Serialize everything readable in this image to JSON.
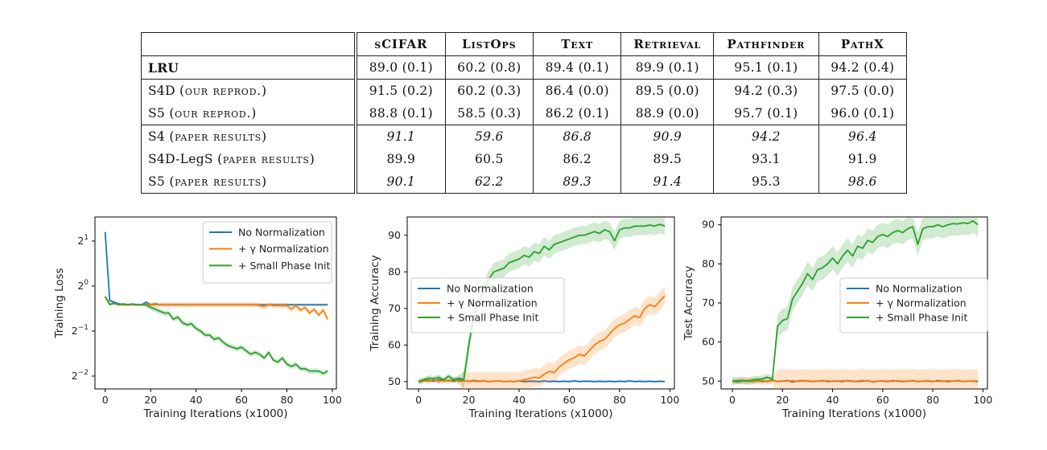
{
  "table": {
    "columns": [
      "sCIFAR",
      "ListOps",
      "Text",
      "Retrieval",
      "Pathfinder",
      "PathX"
    ],
    "rows": [
      {
        "name": "LRU",
        "bold": true,
        "main": "",
        "suffix": "",
        "values": [
          "89.0 (0.1)",
          "60.2 (0.8)",
          "89.4 (0.1)",
          "89.9 (0.1)",
          "95.1 (0.1)",
          "94.2 (0.4)"
        ]
      },
      {
        "name": "",
        "main": "S4D",
        "suffix": "(our reprod.)",
        "values": [
          "91.5 (0.2)",
          "60.2 (0.3)",
          "86.4 (0.0)",
          "89.5 (0.0)",
          "94.2 (0.3)",
          "97.5 (0.0)"
        ]
      },
      {
        "name": "",
        "main": "S5",
        "suffix": "(our reprod.)",
        "values": [
          "88.8 (0.1)",
          "58.5 (0.3)",
          "86.2 (0.1)",
          "88.9 (0.0)",
          "95.7 (0.1)",
          "96.0 (0.1)"
        ]
      },
      {
        "name": "",
        "main": "S4",
        "suffix": "(paper results)",
        "values": [
          "91.1",
          "59.6",
          "86.8",
          "90.9",
          "94.2",
          "96.4"
        ]
      },
      {
        "name": "",
        "main": "S4D-LegS",
        "suffix": "(paper results)",
        "values": [
          "89.9",
          "60.5",
          "86.2",
          "89.5",
          "93.1",
          "91.9"
        ]
      },
      {
        "name": "",
        "main": "S5",
        "suffix": "(paper results)",
        "values": [
          "90.1",
          "62.2",
          "89.3",
          "91.4",
          "95.3",
          "98.6"
        ]
      }
    ]
  },
  "series_colors": {
    "No Normalization": "#1f77b4",
    "+ γ Normalization": "#ff7f0e",
    "+ Small Phase Init": "#2ca02c"
  },
  "chart_data": [
    {
      "type": "line",
      "xlabel": "Training Iterations (x1000)",
      "ylabel": "Training Loss",
      "yscale": "log2",
      "xlim": [
        0,
        100
      ],
      "xticks": [
        0,
        20,
        40,
        60,
        80,
        100
      ],
      "yticks_exp": [
        1,
        0,
        -1,
        -2
      ],
      "legend": "top-right",
      "x": [
        0,
        2,
        4,
        6,
        8,
        10,
        12,
        14,
        16,
        18,
        20,
        22,
        24,
        26,
        28,
        30,
        32,
        34,
        36,
        38,
        40,
        42,
        44,
        46,
        48,
        50,
        52,
        54,
        56,
        58,
        60,
        62,
        64,
        66,
        68,
        70,
        72,
        74,
        76,
        78,
        80,
        82,
        84,
        86,
        88,
        90,
        92,
        94,
        96,
        98
      ],
      "series": [
        {
          "name": "No Normalization",
          "values": [
            2.3,
            0.8,
            0.78,
            0.76,
            0.75,
            0.75,
            0.75,
            0.75,
            0.75,
            0.78,
            0.75,
            0.76,
            0.75,
            0.75,
            0.75,
            0.75,
            0.75,
            0.75,
            0.75,
            0.75,
            0.75,
            0.75,
            0.75,
            0.75,
            0.75,
            0.75,
            0.75,
            0.75,
            0.75,
            0.75,
            0.75,
            0.75,
            0.75,
            0.75,
            0.75,
            0.75,
            0.75,
            0.75,
            0.75,
            0.75,
            0.75,
            0.75,
            0.75,
            0.75,
            0.75,
            0.75,
            0.75,
            0.75,
            0.75,
            0.75
          ]
        },
        {
          "name": "+ γ Normalization",
          "values": [
            0.85,
            0.76,
            0.76,
            0.75,
            0.75,
            0.75,
            0.75,
            0.75,
            0.75,
            0.75,
            0.75,
            0.75,
            0.75,
            0.75,
            0.75,
            0.75,
            0.75,
            0.75,
            0.75,
            0.75,
            0.75,
            0.75,
            0.75,
            0.75,
            0.75,
            0.75,
            0.75,
            0.75,
            0.75,
            0.75,
            0.75,
            0.75,
            0.75,
            0.75,
            0.74,
            0.73,
            0.75,
            0.74,
            0.74,
            0.74,
            0.74,
            0.7,
            0.74,
            0.69,
            0.72,
            0.66,
            0.7,
            0.64,
            0.69,
            0.6
          ]
        },
        {
          "name": "+ Small Phase Init",
          "values": [
            0.85,
            0.75,
            0.77,
            0.75,
            0.76,
            0.75,
            0.76,
            0.75,
            0.75,
            0.75,
            0.72,
            0.7,
            0.68,
            0.66,
            0.66,
            0.6,
            0.62,
            0.57,
            0.55,
            0.56,
            0.52,
            0.5,
            0.47,
            0.47,
            0.44,
            0.45,
            0.42,
            0.4,
            0.39,
            0.38,
            0.39,
            0.37,
            0.35,
            0.36,
            0.35,
            0.33,
            0.36,
            0.32,
            0.31,
            0.33,
            0.3,
            0.29,
            0.3,
            0.28,
            0.28,
            0.27,
            0.27,
            0.27,
            0.26,
            0.27
          ]
        }
      ]
    },
    {
      "type": "line",
      "xlabel": "Training Iterations (x1000)",
      "ylabel": "Training Accuracy",
      "ylim": [
        48,
        95
      ],
      "xlim": [
        0,
        100
      ],
      "xticks": [
        0,
        20,
        40,
        60,
        80,
        100
      ],
      "yticks": [
        50,
        60,
        70,
        80,
        90
      ],
      "legend": "center-left",
      "x": [
        0,
        2,
        4,
        6,
        8,
        10,
        12,
        14,
        16,
        18,
        20,
        22,
        24,
        26,
        28,
        30,
        32,
        34,
        36,
        38,
        40,
        42,
        44,
        46,
        48,
        50,
        52,
        54,
        56,
        58,
        60,
        62,
        64,
        66,
        68,
        70,
        72,
        74,
        76,
        78,
        80,
        82,
        84,
        86,
        88,
        90,
        92,
        94,
        96,
        98
      ],
      "series": [
        {
          "name": "No Normalization",
          "values": [
            50,
            50.2,
            50.4,
            50.1,
            50.6,
            50.2,
            50.3,
            50.1,
            50.5,
            50.2,
            50.1,
            50.3,
            50.1,
            50.2,
            50,
            50.1,
            50.2,
            50,
            50.1,
            50,
            50.2,
            50,
            50.1,
            50.1,
            50,
            50.2,
            50,
            50.1,
            50,
            50.1,
            50,
            50.2,
            50,
            50.1,
            50.1,
            50,
            50.1,
            50,
            50.1,
            50,
            50.1,
            50,
            50.2,
            50,
            50.1,
            50,
            50.1,
            50,
            50.1,
            50
          ]
        },
        {
          "name": "+ γ Normalization",
          "values": [
            50,
            50.2,
            50.1,
            50.5,
            50,
            50.3,
            50.1,
            50.6,
            50,
            50.2,
            50.1,
            50.1,
            50,
            50.2,
            50,
            50.1,
            50.2,
            50,
            50.1,
            50,
            50.2,
            50.5,
            50.8,
            51.2,
            51,
            52,
            52.8,
            52.5,
            54,
            55,
            56,
            56.5,
            57.5,
            57,
            58.5,
            60,
            61,
            61.5,
            63,
            64.5,
            65.5,
            66,
            67,
            68,
            67.5,
            70,
            71,
            70.5,
            72,
            73.5
          ]
        },
        {
          "name": "+ Small Phase Init",
          "values": [
            50,
            50.5,
            51,
            50.8,
            51.2,
            50.5,
            51.5,
            50.5,
            51,
            50.5,
            60,
            68,
            72,
            75,
            78,
            80,
            80.5,
            81,
            82.5,
            83,
            83.5,
            84.5,
            84,
            85.5,
            85,
            87,
            86,
            87.5,
            88,
            88.5,
            89,
            89.5,
            90,
            90,
            90.5,
            91,
            90.5,
            91.5,
            91,
            88.5,
            91.5,
            92,
            92,
            92.5,
            92.5,
            92.5,
            92.8,
            92.5,
            93,
            92.5
          ]
        }
      ]
    },
    {
      "type": "line",
      "xlabel": "Training Iterations (x1000)",
      "ylabel": "Test Accuracy",
      "ylim": [
        48,
        92
      ],
      "xlim": [
        0,
        100
      ],
      "xticks": [
        0,
        20,
        40,
        60,
        80,
        100
      ],
      "yticks": [
        50,
        60,
        70,
        80,
        90
      ],
      "legend": "center-right",
      "x": [
        0,
        2,
        4,
        6,
        8,
        10,
        12,
        14,
        16,
        18,
        20,
        22,
        24,
        26,
        28,
        30,
        32,
        34,
        36,
        38,
        40,
        42,
        44,
        46,
        48,
        50,
        52,
        54,
        56,
        58,
        60,
        62,
        64,
        66,
        68,
        70,
        72,
        74,
        76,
        78,
        80,
        82,
        84,
        86,
        88,
        90,
        92,
        94,
        96,
        98
      ],
      "series": [
        {
          "name": "No Normalization",
          "values": [
            50,
            49.8,
            50,
            50.1,
            49.9,
            50.1,
            50,
            49.9,
            50.2,
            49.9,
            50,
            50.1,
            49.8,
            50,
            50.1,
            50,
            49.9,
            50,
            50.1,
            49.9,
            50,
            50,
            49.9,
            50.1,
            50,
            49.9,
            50,
            50.1,
            49.8,
            50,
            50,
            49.9,
            50.1,
            50,
            49.9,
            50,
            50.1,
            49.9,
            50,
            50,
            49.9,
            50.1,
            50,
            49.9,
            50,
            50.1,
            49.9,
            50,
            50,
            49.9
          ]
        },
        {
          "name": "+ γ Normalization",
          "values": [
            49.9,
            50,
            50.1,
            49.9,
            50,
            50.1,
            49.8,
            50,
            50.1,
            49.9,
            50,
            50,
            50.1,
            49.9,
            50,
            50.1,
            49.9,
            50,
            50,
            50.1,
            49.9,
            50,
            50.1,
            50,
            49.9,
            50,
            50.2,
            50,
            49.9,
            50,
            50.1,
            50,
            49.9,
            50.1,
            50,
            50,
            50.2,
            49.9,
            50,
            50.1,
            50,
            49.9,
            50,
            50.1,
            50,
            50.2,
            49.9,
            50,
            50,
            50.1
          ]
        },
        {
          "name": "+ Small Phase Init",
          "values": [
            50,
            50.1,
            50.2,
            50,
            50.3,
            50.4,
            50.6,
            51,
            50.5,
            64,
            65.5,
            66,
            71,
            73,
            75,
            77.5,
            76,
            78.5,
            79,
            80,
            81.5,
            80,
            82,
            83.5,
            82,
            84.5,
            84,
            86,
            85.5,
            87,
            87.5,
            87,
            88,
            88.5,
            88,
            89,
            89.5,
            85,
            89,
            89.5,
            89.5,
            90,
            89.5,
            90,
            90.3,
            90.2,
            90.5,
            90.3,
            91,
            90
          ]
        }
      ]
    }
  ]
}
